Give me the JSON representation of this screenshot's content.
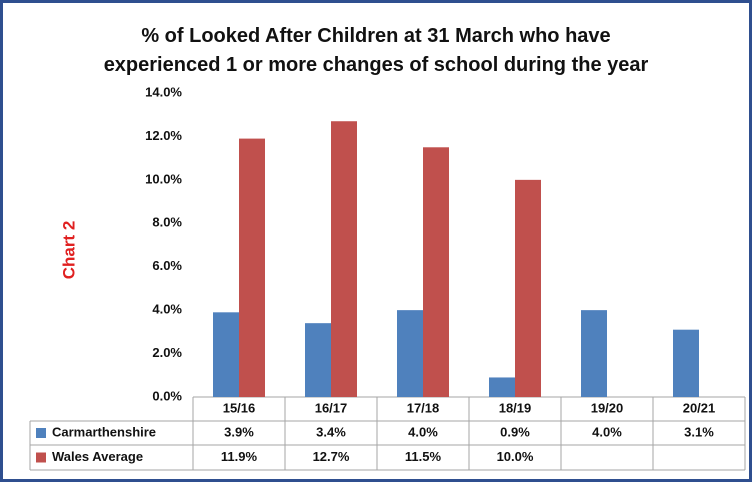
{
  "chart_data": {
    "type": "bar",
    "title": "% of Looked After Children at 31 March who have experienced 1 or more changes of school during the year",
    "y_label": "Chart 2",
    "categories": [
      "15/16",
      "16/17",
      "17/18",
      "18/19",
      "19/20",
      "20/21"
    ],
    "series": [
      {
        "name": "Carmarthenshire",
        "color": "#4f81bd",
        "values": [
          3.9,
          3.4,
          4.0,
          0.9,
          4.0,
          3.1
        ],
        "value_labels": [
          "3.9%",
          "3.4%",
          "4.0%",
          "0.9%",
          "4.0%",
          "3.1%"
        ]
      },
      {
        "name": "Wales Average",
        "color": "#c0504d",
        "values": [
          11.9,
          12.7,
          11.5,
          10.0,
          null,
          null
        ],
        "value_labels": [
          "11.9%",
          "12.7%",
          "11.5%",
          "10.0%",
          null,
          null
        ]
      }
    ],
    "ylim": [
      0,
      14
    ],
    "yticks": [
      {
        "value": 0,
        "label": "0.0%"
      },
      {
        "value": 2,
        "label": "2.0%"
      },
      {
        "value": 4,
        "label": "4.0%"
      },
      {
        "value": 6,
        "label": "6.0%"
      },
      {
        "value": 8,
        "label": "8.0%"
      },
      {
        "value": 10,
        "label": "10.0%"
      },
      {
        "value": 12,
        "label": "12.0%"
      },
      {
        "value": 14,
        "label": "14.0%"
      }
    ],
    "grid": false
  }
}
